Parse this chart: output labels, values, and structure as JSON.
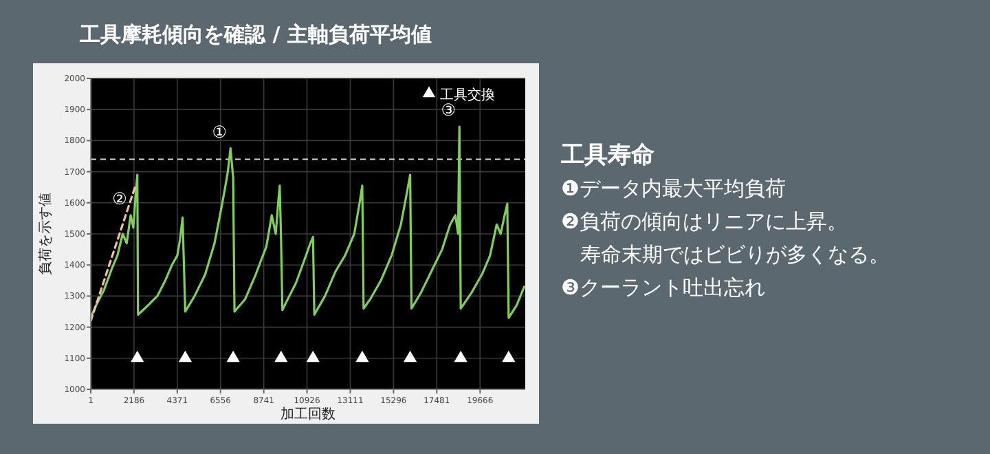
{
  "chart_data": {
    "type": "line",
    "title": "工具摩耗傾向を確認 / 主軸負荷平均値",
    "xlabel": "加工回数",
    "ylabel": "負荷を示す値",
    "xlim": [
      1,
      21950
    ],
    "xticks": [
      1,
      2186,
      4371,
      6556,
      8741,
      10926,
      13111,
      15296,
      17481,
      19666
    ],
    "ylim": [
      1000,
      2000
    ],
    "yticks": [
      1000,
      1100,
      1200,
      1300,
      1400,
      1500,
      1600,
      1700,
      1800,
      1900,
      2000
    ],
    "grid": true,
    "legend": "top right",
    "ref_lines": [
      {
        "axis": "y",
        "value": 1740,
        "color": "#d9d9d9",
        "line_style": "dashed"
      }
    ],
    "series": [
      {
        "color": "#7fcf5a",
        "x": [
          1,
          270,
          673,
          1077,
          1346,
          1615,
          1816,
          2018,
          2152,
          2287,
          2354,
          2388,
          2892,
          3363,
          3766,
          4102,
          4371,
          4506,
          4640,
          4774,
          5245,
          5783,
          6253,
          6590,
          6791,
          6926,
          7060,
          7195,
          7262,
          7800,
          8338,
          8875,
          9144,
          9346,
          9481,
          9548,
          9615,
          9682,
          9951,
          10354,
          10758,
          11094,
          11228,
          11295,
          11833,
          12371,
          12842,
          13111,
          13313,
          13582,
          13716,
          13783,
          14119,
          14657,
          15195,
          15666,
          15935,
          16136,
          16203,
          16674,
          17212,
          17750,
          18153,
          18422,
          18557,
          18624,
          18691,
          19229,
          19767,
          20170,
          20506,
          20708,
          20909,
          21043,
          21111,
          21514,
          21900
        ],
        "values": [
          1230,
          1270,
          1320,
          1390,
          1430,
          1500,
          1470,
          1560,
          1520,
          1640,
          1690,
          1240,
          1270,
          1300,
          1350,
          1400,
          1430,
          1480,
          1553,
          1250,
          1300,
          1370,
          1470,
          1580,
          1650,
          1700,
          1775,
          1680,
          1250,
          1290,
          1370,
          1460,
          1560,
          1500,
          1610,
          1655,
          1480,
          1255,
          1290,
          1340,
          1410,
          1470,
          1490,
          1240,
          1300,
          1380,
          1430,
          1470,
          1500,
          1600,
          1655,
          1260,
          1290,
          1350,
          1430,
          1530,
          1620,
          1690,
          1260,
          1310,
          1380,
          1450,
          1530,
          1560,
          1500,
          1845,
          1260,
          1310,
          1370,
          1430,
          1530,
          1500,
          1560,
          1597,
          1230,
          1270,
          1330
        ]
      },
      {
        "type": "line",
        "color": "#f0c0a0",
        "line_style": "dashed",
        "x": [
          1,
          2287
        ],
        "values": [
          1220,
          1660
        ]
      },
      {
        "type": "scatter",
        "name": "工具交換",
        "color": "#ffffff",
        "marker": "triangle",
        "x": [
          2354,
          4774,
          7195,
          9615,
          11228,
          13716,
          16136,
          18691,
          21111
        ],
        "values": [
          1100,
          1100,
          1100,
          1100,
          1100,
          1100,
          1100,
          1100,
          1100
        ]
      }
    ],
    "annotations": [
      {
        "text": "①",
        "x": 7060,
        "y": 1775
      },
      {
        "text": "②",
        "x": 2018,
        "y": 1560
      },
      {
        "text": "③",
        "x": 18624,
        "y": 1845
      },
      "工具寿命",
      "❶データ内最大平均負荷",
      "❷負荷の傾向はリニアに上昇。",
      "寿命末期ではビビりが多くなる。",
      "❸クーラント吐出忘れ"
    ]
  }
}
